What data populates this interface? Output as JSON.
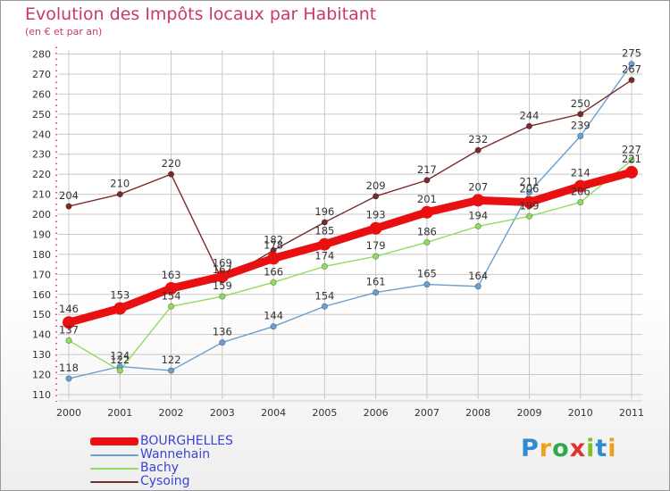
{
  "title": "Evolution des Impôts locaux par Habitant",
  "subtitle": "(en € et par an)",
  "logo": {
    "text": "Proxiti",
    "colors": [
      "#2f8ad2",
      "#f0a020",
      "#2fa84f",
      "#e0342a",
      "#7fbf2f",
      "#2f8ad2",
      "#e8a020"
    ]
  },
  "chart_data": {
    "type": "line",
    "title": "Evolution des Impôts locaux par Habitant",
    "subtitle": "(en € et par an)",
    "xlabel": "",
    "ylabel": "",
    "x": [
      "2000",
      "2001",
      "2002",
      "2003",
      "2004",
      "2005",
      "2006",
      "2007",
      "2008",
      "2009",
      "2010",
      "2011"
    ],
    "ylim": [
      110,
      280
    ],
    "yticks": [
      110,
      120,
      130,
      140,
      150,
      160,
      170,
      180,
      190,
      200,
      210,
      220,
      230,
      240,
      250,
      260,
      270,
      280
    ],
    "grid": true,
    "series": [
      {
        "name": "BOURGHELLES",
        "color": "#e81010",
        "emphasis": true,
        "values": [
          146,
          153,
          163,
          169,
          178,
          185,
          193,
          201,
          207,
          206,
          214,
          221
        ]
      },
      {
        "name": "Wannehain",
        "color": "#6a9fd0",
        "emphasis": false,
        "values": [
          118,
          124,
          122,
          136,
          144,
          154,
          161,
          165,
          164,
          211,
          239,
          275
        ]
      },
      {
        "name": "Bachy",
        "color": "#90dc60",
        "emphasis": false,
        "values": [
          137,
          122,
          154,
          159,
          166,
          174,
          179,
          186,
          194,
          199,
          206,
          227
        ]
      },
      {
        "name": "Cysoing",
        "color": "#7a2a2a",
        "emphasis": false,
        "values": [
          204,
          210,
          220,
          167,
          182,
          196,
          209,
          217,
          232,
          244,
          250,
          267
        ]
      }
    ]
  }
}
